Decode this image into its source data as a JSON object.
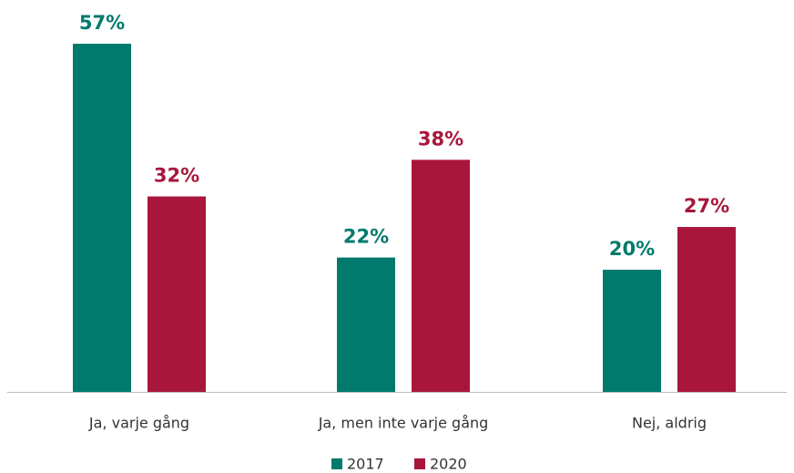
{
  "chart_data": {
    "type": "bar",
    "categories": [
      "Ja, varje gång",
      "Ja, men inte varje gång",
      "Nej, aldrig"
    ],
    "series": [
      {
        "name": "2017",
        "color": "#007a6c",
        "values": [
          57,
          22,
          20
        ],
        "value_labels": [
          "57%",
          "22%",
          "20%"
        ]
      },
      {
        "name": "2020",
        "color": "#a8173b",
        "values": [
          32,
          38,
          27
        ],
        "value_labels": [
          "32%",
          "38%",
          "27%"
        ]
      }
    ]
  }
}
